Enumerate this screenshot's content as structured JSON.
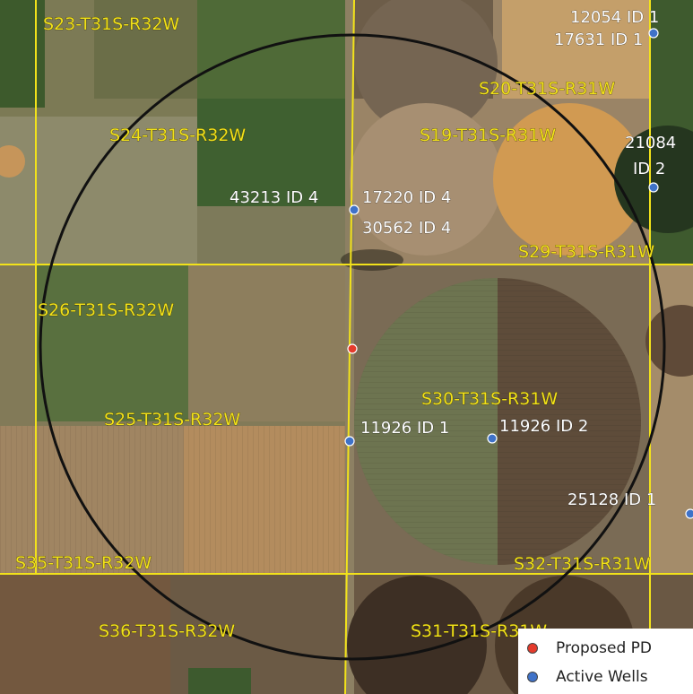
{
  "colors": {
    "section_line": "#f2e21a",
    "radius_circle": "#111111",
    "proposed": "#e53b2c",
    "active": "#3f72c8"
  },
  "sections": [
    "S23-T31S-R32W",
    "S24-T31S-R32W",
    "S19-T31S-R31W",
    "S20-T31S-R31W",
    "S29-T31S-R31W",
    "S26-T31S-R32W",
    "S25-T31S-R32W",
    "S30-T31S-R31W",
    "S35-T31S-R32W",
    "S32-T31S-R31W",
    "S36-T31S-R32W",
    "S31-T31S-R31W"
  ],
  "well_labels": [
    "12054 ID 1",
    "17631 ID 1",
    "21084",
    "ID 2",
    "43213 ID 4",
    "17220 ID 4",
    "30562 ID 4",
    "11926 ID 1",
    "11926 ID 2",
    "25128 ID 1"
  ],
  "legend": {
    "items": [
      {
        "label": "Proposed PD",
        "color": "#e53b2c"
      },
      {
        "label": "Active Wells",
        "color": "#3f72c8"
      }
    ]
  }
}
